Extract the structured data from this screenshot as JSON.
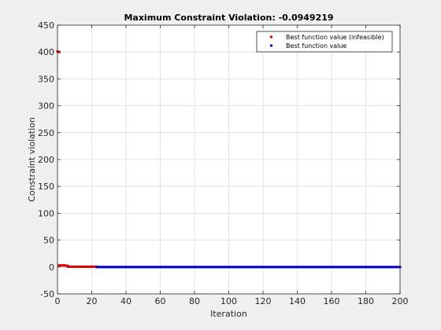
{
  "figure": {
    "background": "#f0f0f0",
    "axes_background": "#ffffff"
  },
  "chart_data": {
    "type": "scatter",
    "title": "Maximum Constraint Violation: -0.0949219",
    "xlabel": "Iteration",
    "ylabel": "Constraint violation",
    "xlim": [
      0,
      200
    ],
    "ylim": [
      -50,
      450
    ],
    "xticks": [
      0,
      20,
      40,
      60,
      80,
      100,
      120,
      140,
      160,
      180,
      200
    ],
    "yticks": [
      -50,
      0,
      50,
      100,
      150,
      200,
      250,
      300,
      350,
      400,
      450
    ],
    "grid": true,
    "legend_position": "top-right",
    "series": [
      {
        "name": "Best function value (infeasible)",
        "color": "#e00000",
        "marker": "square",
        "segments": [
          {
            "x": [
              0,
              1
            ],
            "y": [
              401,
              400
            ]
          },
          {
            "x": [
              1,
              4
            ],
            "y": [
              3,
              3
            ]
          },
          {
            "x": [
              4,
              6
            ],
            "y": [
              3,
              2
            ]
          },
          {
            "x": [
              6,
              23
            ],
            "y": [
              0.5,
              0.5
            ]
          }
        ]
      },
      {
        "name": "Best function value",
        "color": "#0000cc",
        "marker": "square",
        "segments": [
          {
            "x": [
              23,
              200
            ],
            "y": [
              -0.0949219,
              -0.0949219
            ]
          }
        ]
      }
    ]
  }
}
